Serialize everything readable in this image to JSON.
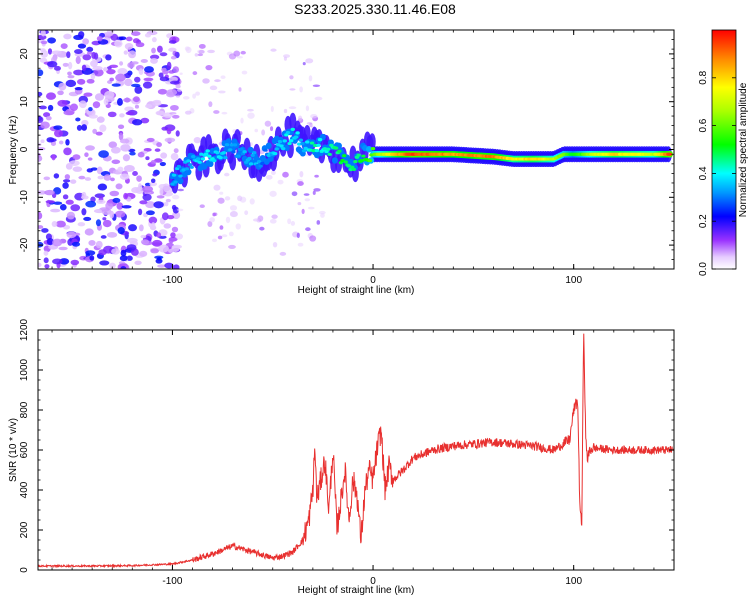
{
  "title": "S233.2025.330.11.46.E08",
  "chart_data": [
    {
      "type": "heatmap",
      "xlabel": "Height of straight line (km)",
      "ylabel": "Frequency (Hz)",
      "xlim": [
        -167,
        150
      ],
      "ylim": [
        -25,
        25
      ],
      "xticks": [
        -100,
        0,
        100
      ],
      "xtick_labels": [
        "-100",
        "0",
        "100"
      ],
      "yticks": [
        -20,
        -10,
        0,
        10,
        20
      ],
      "ytick_labels": [
        "-20",
        "-10",
        "0",
        "10",
        "20"
      ],
      "colorbar": {
        "label": "Normalized spectral amplitude",
        "range": [
          0,
          1
        ],
        "ticks": [
          0.0,
          0.2,
          0.4,
          0.6,
          0.8
        ],
        "tick_labels": [
          "0.0",
          "0.2",
          "0.4",
          "0.6",
          "0.8"
        ]
      },
      "ridge": {
        "x": [
          -100,
          -90,
          -80,
          -70,
          -60,
          -55,
          -50,
          -40,
          -35,
          -30,
          -25,
          -20,
          -15,
          -10,
          -5,
          0,
          10,
          20,
          40,
          60,
          70,
          80,
          90,
          95,
          100,
          110,
          120,
          140,
          148
        ],
        "y": [
          -6,
          -3,
          -1,
          0,
          -2,
          -2,
          0,
          3,
          1,
          0,
          1,
          0,
          -2,
          -3,
          -1,
          -1,
          -1,
          -1,
          -1,
          -1.5,
          -2,
          -2,
          -2,
          -1,
          -1,
          -1,
          -1,
          -1,
          -1
        ],
        "amplitude": [
          0.35,
          0.35,
          0.4,
          0.3,
          0.35,
          0.3,
          0.35,
          0.4,
          0.35,
          0.45,
          0.4,
          0.45,
          0.5,
          0.45,
          0.5,
          0.6,
          0.8,
          0.95,
          0.85,
          0.9,
          0.75,
          0.8,
          0.7,
          0.6,
          0.5,
          0.7,
          0.8,
          0.7,
          0.95
        ]
      }
    },
    {
      "type": "line",
      "xlabel": "Height of straight line (km)",
      "ylabel": "SNR (10 * v/v)",
      "xlim": [
        -167,
        150
      ],
      "ylim": [
        0,
        1200
      ],
      "xticks": [
        -100,
        0,
        100
      ],
      "xtick_labels": [
        "-100",
        "0",
        "100"
      ],
      "yticks": [
        0,
        200,
        400,
        600,
        800,
        1000,
        1200
      ],
      "ytick_labels": [
        "0",
        "200",
        "400",
        "600",
        "800",
        "1000",
        "1200"
      ],
      "series": [
        {
          "name": "SNR",
          "color": "#e8302f",
          "x": [
            -167,
            -140,
            -120,
            -100,
            -90,
            -80,
            -70,
            -60,
            -50,
            -45,
            -40,
            -35,
            -32,
            -30,
            -29,
            -28,
            -26,
            -24,
            -22,
            -20,
            -18,
            -16,
            -14,
            -12,
            -10,
            -8,
            -6,
            -4,
            -2,
            0,
            2,
            4,
            6,
            8,
            10,
            15,
            20,
            25,
            30,
            40,
            50,
            60,
            70,
            80,
            90,
            98,
            100,
            102,
            103,
            104,
            105,
            106,
            107,
            108,
            110,
            120,
            130,
            140,
            150
          ],
          "y": [
            20,
            20,
            22,
            30,
            50,
            80,
            120,
            90,
            60,
            70,
            90,
            150,
            250,
            400,
            620,
            350,
            450,
            550,
            300,
            600,
            200,
            350,
            500,
            250,
            450,
            380,
            150,
            400,
            500,
            450,
            600,
            700,
            400,
            520,
            450,
            500,
            560,
            580,
            600,
            620,
            630,
            640,
            630,
            620,
            600,
            650,
            800,
            850,
            350,
            200,
            1220,
            650,
            550,
            600,
            610,
            600,
            600,
            600,
            600
          ]
        }
      ]
    }
  ]
}
